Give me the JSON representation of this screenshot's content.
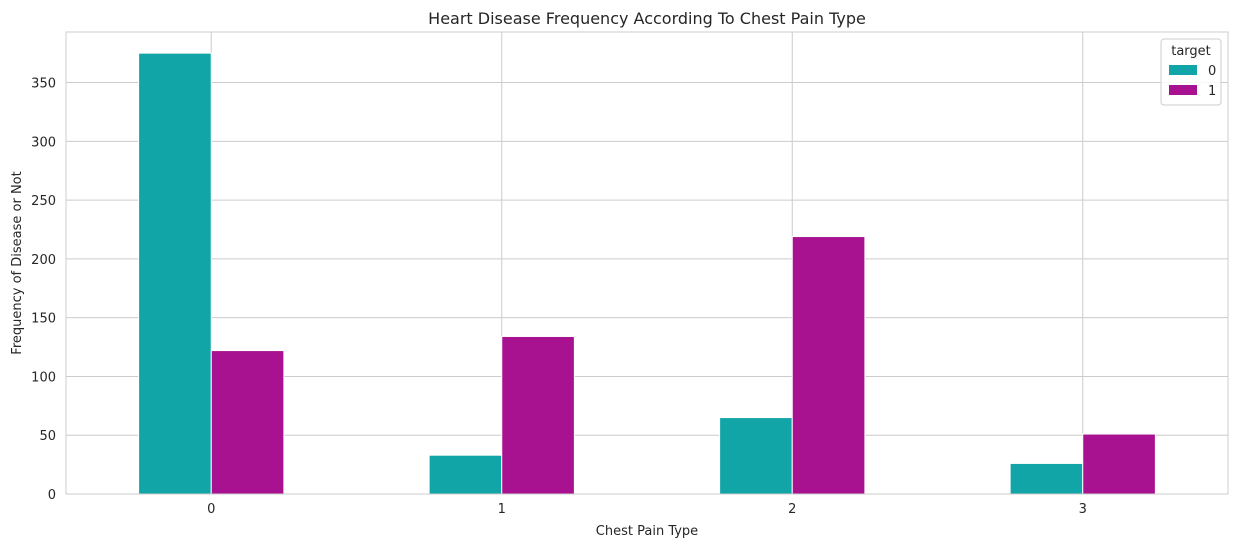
{
  "chart_data": {
    "type": "bar",
    "title": "Heart Disease Frequency According To Chest Pain Type",
    "xlabel": "Chest Pain Type",
    "ylabel": "Frequency of Disease or Not",
    "categories": [
      "0",
      "1",
      "2",
      "3"
    ],
    "series": [
      {
        "name": "0",
        "values": [
          375,
          33,
          65,
          26
        ],
        "color": "#11a5a8"
      },
      {
        "name": "1",
        "values": [
          122,
          134,
          219,
          51
        ],
        "color": "#a8118f"
      }
    ],
    "ylim": [
      0,
      393
    ],
    "yticks": [
      0,
      50,
      100,
      150,
      200,
      250,
      300,
      350
    ],
    "grid": true,
    "legend": {
      "title": "target",
      "position": "top-right"
    }
  }
}
